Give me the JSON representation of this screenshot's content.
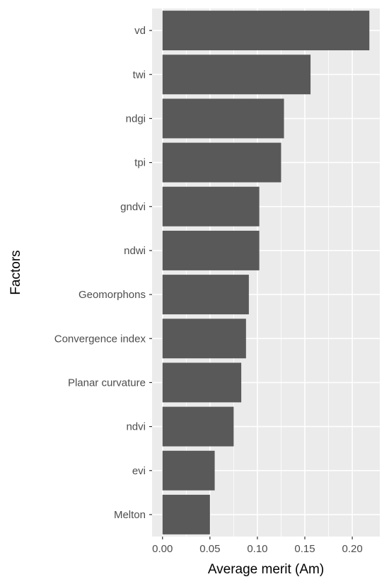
{
  "chart_data": {
    "type": "bar",
    "orientation": "horizontal",
    "title": "",
    "xlabel": "Average merit (Am)",
    "ylabel": "Factors",
    "categories": [
      "vd",
      "twi",
      "ndgi",
      "tpi",
      "gndvi",
      "ndwi",
      "Geomorphons",
      "Convergence index",
      "Planar curvature",
      "ndvi",
      "evi",
      "Melton"
    ],
    "values": [
      0.218,
      0.156,
      0.128,
      0.125,
      0.102,
      0.102,
      0.091,
      0.088,
      0.083,
      0.075,
      0.055,
      0.05
    ],
    "xlim": [
      -0.011,
      0.229
    ],
    "xticks": [
      0.0,
      0.05,
      0.1,
      0.15,
      0.2
    ],
    "xtick_labels": [
      "0.00",
      "0.05",
      "0.10",
      "0.15",
      "0.20"
    ],
    "grid": true,
    "legend": "none",
    "colors": {
      "bar": "#595959",
      "panel": "#ebebeb",
      "grid": "#ffffff",
      "tick": "#333333"
    }
  }
}
